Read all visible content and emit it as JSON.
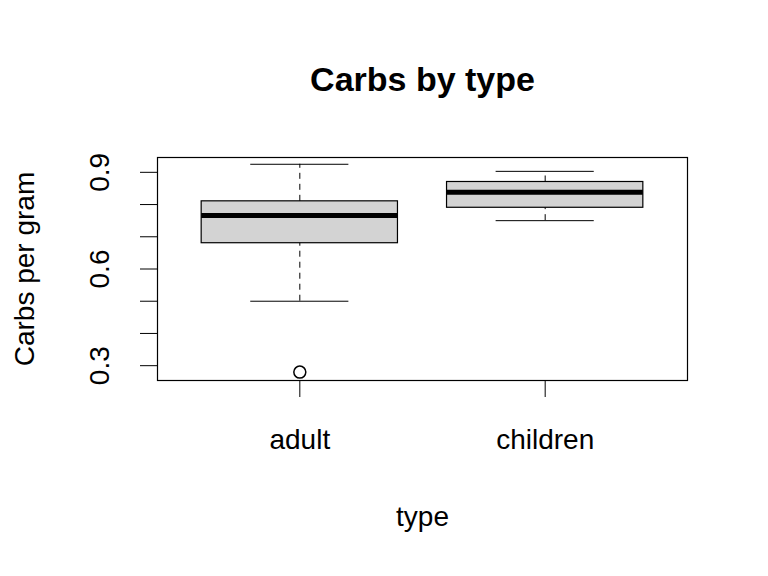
{
  "chart_data": {
    "type": "boxplot",
    "title": "Carbs by type",
    "x_label": "type",
    "y_label": "Carbs per gram",
    "categories": [
      "adult",
      "children"
    ],
    "boxes": [
      {
        "whisker_low": 0.5,
        "q1": 0.68,
        "median": 0.766,
        "q3": 0.81,
        "whisker_high": 0.925,
        "outliers": [
          0.28
        ]
      },
      {
        "whisker_low": 0.75,
        "q1": 0.79,
        "median": 0.838,
        "q3": 0.87,
        "whisker_high": 0.903,
        "outliers": []
      }
    ],
    "color": "#d3d3d3",
    "ylim": [
      0.254,
      0.946
    ],
    "yticks": [
      0.3,
      {
        "value": 0.4,
        "label": null
      },
      {
        "value": 0.5,
        "label": null
      },
      0.6,
      {
        "value": 0.7,
        "label": null
      },
      {
        "value": 0.8,
        "label": null
      },
      0.9
    ]
  }
}
